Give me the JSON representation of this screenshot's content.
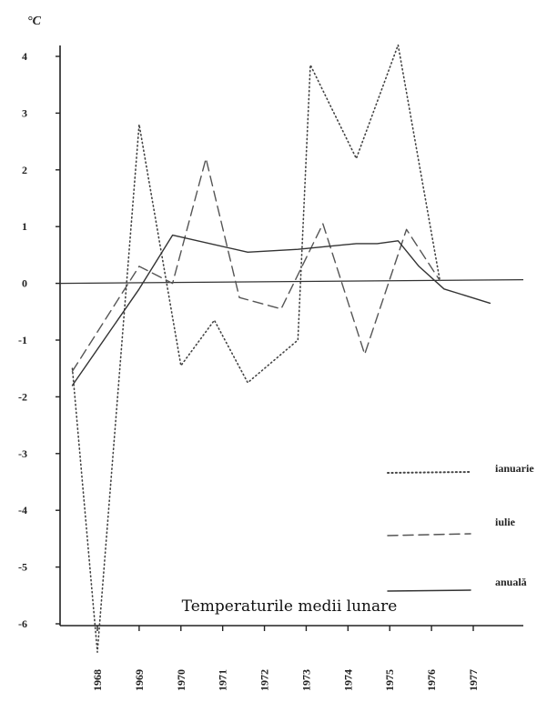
{
  "chart_data": {
    "type": "line",
    "unit_label": "°C",
    "title": "Temperaturile medii lunare",
    "x_tick_labels": [
      "1968",
      "1969",
      "1970",
      "1971",
      "1972",
      "1973",
      "1974",
      "1975",
      "1976",
      "1977"
    ],
    "y_ticks": [
      4,
      3,
      2,
      1,
      0,
      -1,
      -2,
      -3,
      -4,
      -5,
      -6
    ],
    "y_tick_labels": [
      "4",
      "3",
      "2",
      "1",
      "0",
      "-1",
      "-2",
      "-3",
      "-4",
      "-5",
      "-6"
    ],
    "xlim": [
      1967.4,
      1978.3
    ],
    "ylim": [
      -6.5,
      4.6
    ],
    "zero_line": true,
    "grid": false,
    "legend_position": "bottom-right",
    "series": [
      {
        "name": "ianuarie",
        "style": "dotted",
        "color": "#444444",
        "points": [
          [
            1967.4,
            -1.5
          ],
          [
            1968.0,
            -6.5
          ],
          [
            1969.0,
            2.8
          ],
          [
            1970.0,
            -1.45
          ],
          [
            1970.8,
            -0.65
          ],
          [
            1971.6,
            -1.75
          ],
          [
            1972.8,
            -1.0
          ],
          [
            1973.1,
            3.85
          ],
          [
            1974.2,
            2.2
          ],
          [
            1975.2,
            4.2
          ],
          [
            1976.2,
            0.05
          ]
        ]
      },
      {
        "name": "iulie",
        "style": "dashed",
        "color": "#555555",
        "points": [
          [
            1967.4,
            -1.55
          ],
          [
            1969.0,
            0.3
          ],
          [
            1969.8,
            0.0
          ],
          [
            1970.6,
            2.2
          ],
          [
            1971.4,
            -0.25
          ],
          [
            1972.4,
            -0.45
          ],
          [
            1973.4,
            1.05
          ],
          [
            1974.4,
            -1.25
          ],
          [
            1975.4,
            0.95
          ],
          [
            1976.2,
            0.05
          ]
        ]
      },
      {
        "name": "anuală",
        "style": "solid",
        "color": "#333333",
        "points": [
          [
            1967.4,
            -1.8
          ],
          [
            1969.0,
            -0.1
          ],
          [
            1969.8,
            0.85
          ],
          [
            1971.6,
            0.55
          ],
          [
            1972.8,
            0.6
          ],
          [
            1974.2,
            0.7
          ],
          [
            1974.7,
            0.7
          ],
          [
            1975.2,
            0.75
          ],
          [
            1975.7,
            0.3
          ],
          [
            1976.3,
            -0.1
          ],
          [
            1977.4,
            -0.35
          ]
        ]
      }
    ]
  }
}
